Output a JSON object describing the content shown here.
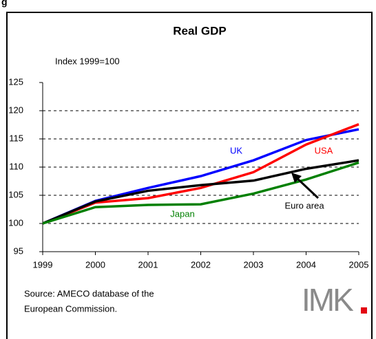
{
  "header_fragment": "g",
  "chart_data": {
    "type": "line",
    "title": "Real GDP",
    "y_label": "Index 1999=100",
    "categories": [
      "1999",
      "2000",
      "2001",
      "2002",
      "2003",
      "2004",
      "2005"
    ],
    "series": [
      {
        "name": "UK",
        "color": "#0000ff",
        "values": [
          100,
          104,
          106.3,
          108.4,
          111.2,
          114.8,
          116.7
        ]
      },
      {
        "name": "USA",
        "color": "#ff0000",
        "values": [
          100,
          103.7,
          104.5,
          106.3,
          109.1,
          114,
          117.6
        ]
      },
      {
        "name": "Euro area",
        "color": "#000000",
        "values": [
          100,
          103.9,
          105.8,
          106.8,
          107.6,
          109.7,
          111.2
        ]
      },
      {
        "name": "Japan",
        "color": "#008000",
        "values": [
          100,
          102.9,
          103.3,
          103.4,
          105.3,
          107.8,
          110.8
        ]
      }
    ],
    "ylim": [
      95,
      125
    ],
    "yticks": [
      95,
      100,
      105,
      110,
      115,
      120,
      125
    ],
    "grid": true,
    "source": [
      "Source: AMECO database of the",
      "European Commission."
    ],
    "logo": "IMK"
  }
}
